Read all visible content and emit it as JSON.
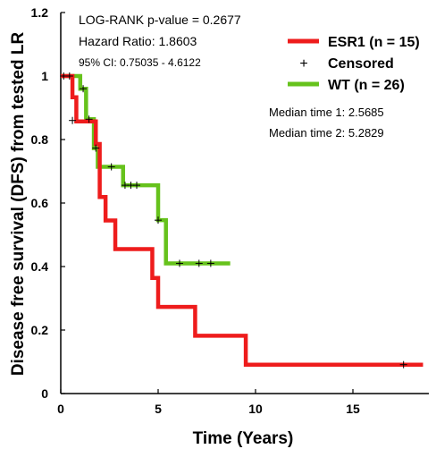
{
  "chart_data": {
    "type": "line",
    "subtype": "kaplan-meier",
    "xlabel": "Time (Years)",
    "ylabel": "Disease free survival (DFS) from tested LR",
    "xlim": [
      0,
      19
    ],
    "ylim": [
      0,
      1.2
    ],
    "xticks": [
      "0",
      "5",
      "10",
      "15"
    ],
    "yticks": [
      "0",
      "0.2",
      "0.4",
      "0.6",
      "0.8",
      "1",
      "1.2"
    ],
    "xtick_values": [
      0,
      5,
      10,
      15
    ],
    "ytick_values": [
      0,
      0.2,
      0.4,
      0.6,
      0.8,
      1.0,
      1.2
    ],
    "grid": false,
    "legend_position": "top-right",
    "stats": {
      "logrank": "LOG-RANK p-value = 0.2677",
      "hazard_ratio": "Hazard Ratio: 1.8603",
      "ci": "95% CI: 0.75035 - 4.6122"
    },
    "legend": {
      "series1": "ESR1 (n = 15)",
      "censored": "Censored",
      "series2": "WT (n = 26)"
    },
    "medians": {
      "m1": "Median time 1:  2.5685",
      "m2": "Median time 2:  5.2829"
    },
    "series": [
      {
        "name": "ESR1 (n = 15)",
        "color": "#ee1c1c",
        "steps": [
          [
            0,
            1.0
          ],
          [
            0.6,
            0.933
          ],
          [
            0.8,
            0.857
          ],
          [
            1.8,
            0.786
          ],
          [
            2.0,
            0.619
          ],
          [
            2.3,
            0.545
          ],
          [
            2.8,
            0.455
          ],
          [
            4.7,
            0.364
          ],
          [
            5.0,
            0.273
          ],
          [
            6.9,
            0.182
          ],
          [
            9.5,
            0.091
          ],
          [
            18.6,
            0.091
          ]
        ],
        "censored": [
          [
            17.6,
            0.091
          ]
        ]
      },
      {
        "name": "WT (n = 26)",
        "color": "#66c21c",
        "steps": [
          [
            0,
            1.0
          ],
          [
            1.0,
            0.96
          ],
          [
            1.3,
            0.864
          ],
          [
            1.7,
            0.773
          ],
          [
            1.9,
            0.714
          ],
          [
            3.2,
            0.656
          ],
          [
            5.0,
            0.546
          ],
          [
            5.4,
            0.41
          ],
          [
            8.7,
            0.41
          ]
        ],
        "censored": [
          [
            0.15,
            1.0
          ],
          [
            0.45,
            1.0
          ],
          [
            0.6,
            0.86
          ],
          [
            1.15,
            0.96
          ],
          [
            1.45,
            0.864
          ],
          [
            1.8,
            0.773
          ],
          [
            2.6,
            0.714
          ],
          [
            3.3,
            0.656
          ],
          [
            3.6,
            0.656
          ],
          [
            3.9,
            0.656
          ],
          [
            5.0,
            0.546
          ],
          [
            6.1,
            0.41
          ],
          [
            7.1,
            0.41
          ],
          [
            7.7,
            0.41
          ]
        ]
      }
    ]
  },
  "colors": {
    "esr1": "#ee1c1c",
    "wt": "#66c21c",
    "axis": "#000000"
  }
}
